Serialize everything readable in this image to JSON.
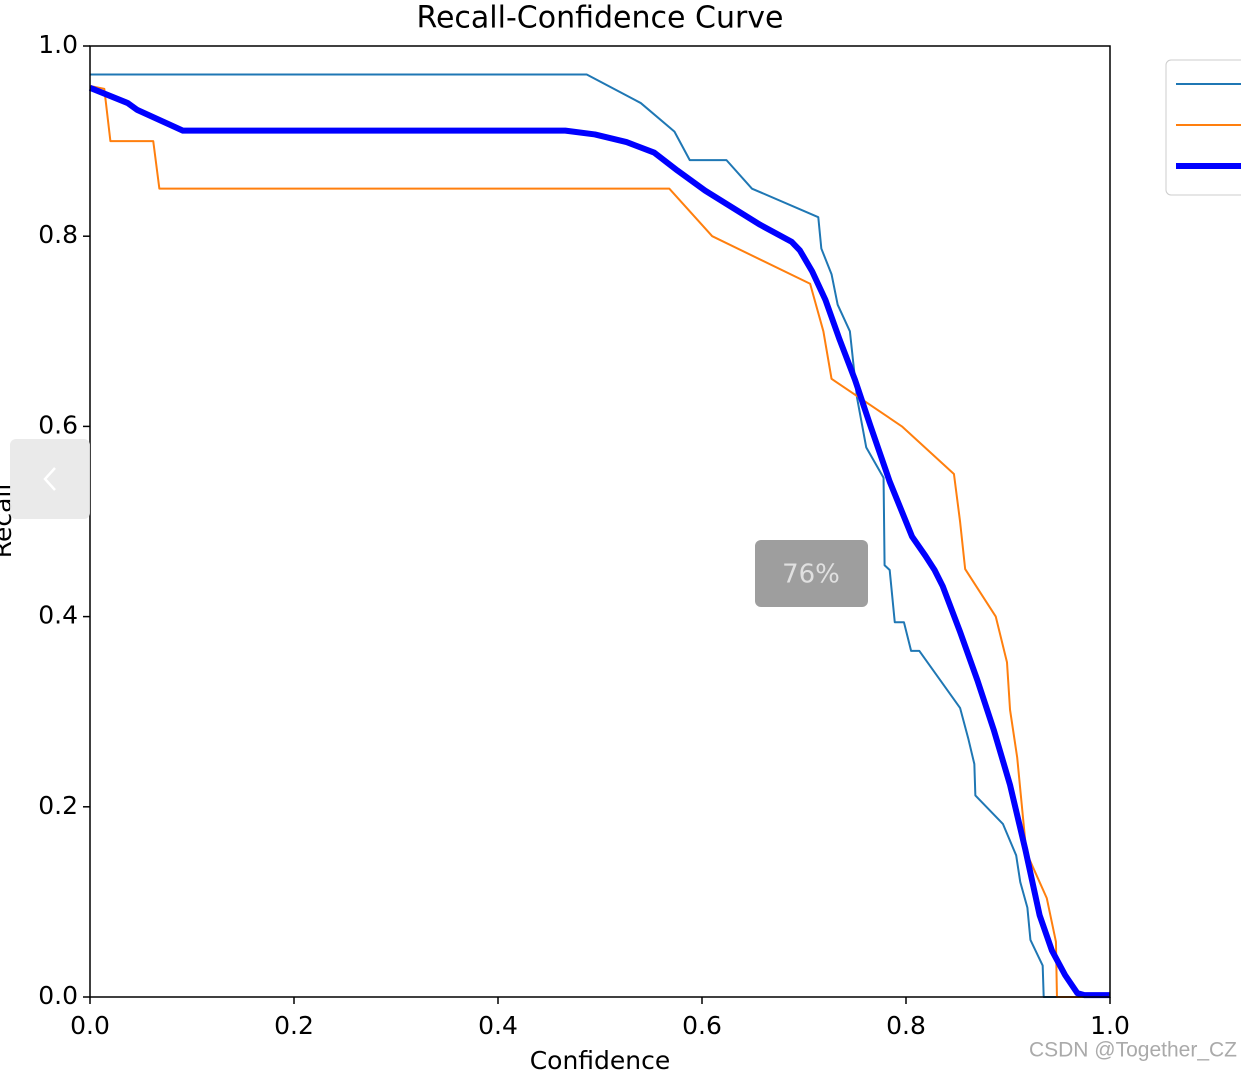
{
  "chart_data": {
    "type": "line",
    "title": "Recall-Confidence Curve",
    "xlabel": "Confidence",
    "ylabel": "Recall",
    "xlim": [
      0,
      1
    ],
    "ylim": [
      0,
      1
    ],
    "xticks": [
      {
        "value": 0,
        "label": "0.0"
      },
      0.2,
      0.4,
      0.6,
      0.8,
      {
        "value": 1,
        "label": "1.0"
      }
    ],
    "yticks": [
      {
        "value": 0,
        "label": "0.0"
      },
      0.2,
      0.4,
      0.6,
      0.8,
      {
        "value": 1,
        "label": "1.0"
      }
    ],
    "grid": false,
    "legend": "upper right",
    "series": [
      {
        "color": "#1f77b4",
        "width": 2,
        "x": [
          0,
          0.487,
          0.54,
          0.573,
          0.588,
          0.624,
          0.649,
          0.714,
          0.717,
          0.727,
          0.733,
          0.745,
          0.752,
          0.761,
          0.778,
          0.779,
          0.784,
          0.789,
          0.798,
          0.805,
          0.813,
          0.853,
          0.861,
          0.867,
          0.868,
          0.895,
          0.908,
          0.912,
          0.919,
          0.922,
          0.934,
          0.935,
          1.0
        ],
        "values": [
          0.97,
          0.97,
          0.94,
          0.91,
          0.88,
          0.88,
          0.85,
          0.82,
          0.787,
          0.76,
          0.728,
          0.7,
          0.63,
          0.578,
          0.546,
          0.454,
          0.449,
          0.394,
          0.394,
          0.364,
          0.364,
          0.304,
          0.272,
          0.245,
          0.212,
          0.182,
          0.149,
          0.121,
          0.094,
          0.06,
          0.033,
          0,
          0
        ]
      },
      {
        "color": "#ff7f0e",
        "width": 2,
        "x": [
          0,
          0.014,
          0.02,
          0.062,
          0.068,
          0.568,
          0.61,
          0.706,
          0.719,
          0.727,
          0.796,
          0.847,
          0.853,
          0.858,
          0.888,
          0.899,
          0.902,
          0.909,
          0.918,
          0.938,
          0.947,
          0.948,
          1.0
        ],
        "values": [
          0.958,
          0.955,
          0.9,
          0.9,
          0.85,
          0.85,
          0.8,
          0.75,
          0.7,
          0.65,
          0.6,
          0.55,
          0.5,
          0.45,
          0.4,
          0.352,
          0.302,
          0.252,
          0.152,
          0.104,
          0.058,
          0,
          0
        ]
      },
      {
        "color": "#0000ff",
        "width": 6,
        "x": [
          0,
          0.037,
          0.046,
          0.091,
          0.466,
          0.495,
          0.526,
          0.553,
          0.576,
          0.603,
          0.657,
          0.688,
          0.696,
          0.708,
          0.721,
          0.735,
          0.75,
          0.765,
          0.784,
          0.806,
          0.819,
          0.828,
          0.836,
          0.853,
          0.87,
          0.886,
          0.902,
          0.917,
          0.931,
          0.943,
          0.956,
          0.968,
          0.975,
          1.0
        ],
        "values": [
          0.956,
          0.94,
          0.933,
          0.911,
          0.911,
          0.907,
          0.899,
          0.888,
          0.869,
          0.848,
          0.812,
          0.794,
          0.785,
          0.763,
          0.733,
          0.691,
          0.649,
          0.601,
          0.542,
          0.484,
          0.464,
          0.449,
          0.432,
          0.384,
          0.333,
          0.281,
          0.223,
          0.155,
          0.086,
          0.049,
          0.023,
          0.004,
          0.002,
          0.002
        ]
      }
    ]
  },
  "overlay": {
    "zoom": "76%",
    "watermark": "CSDN @Together_CZ"
  }
}
